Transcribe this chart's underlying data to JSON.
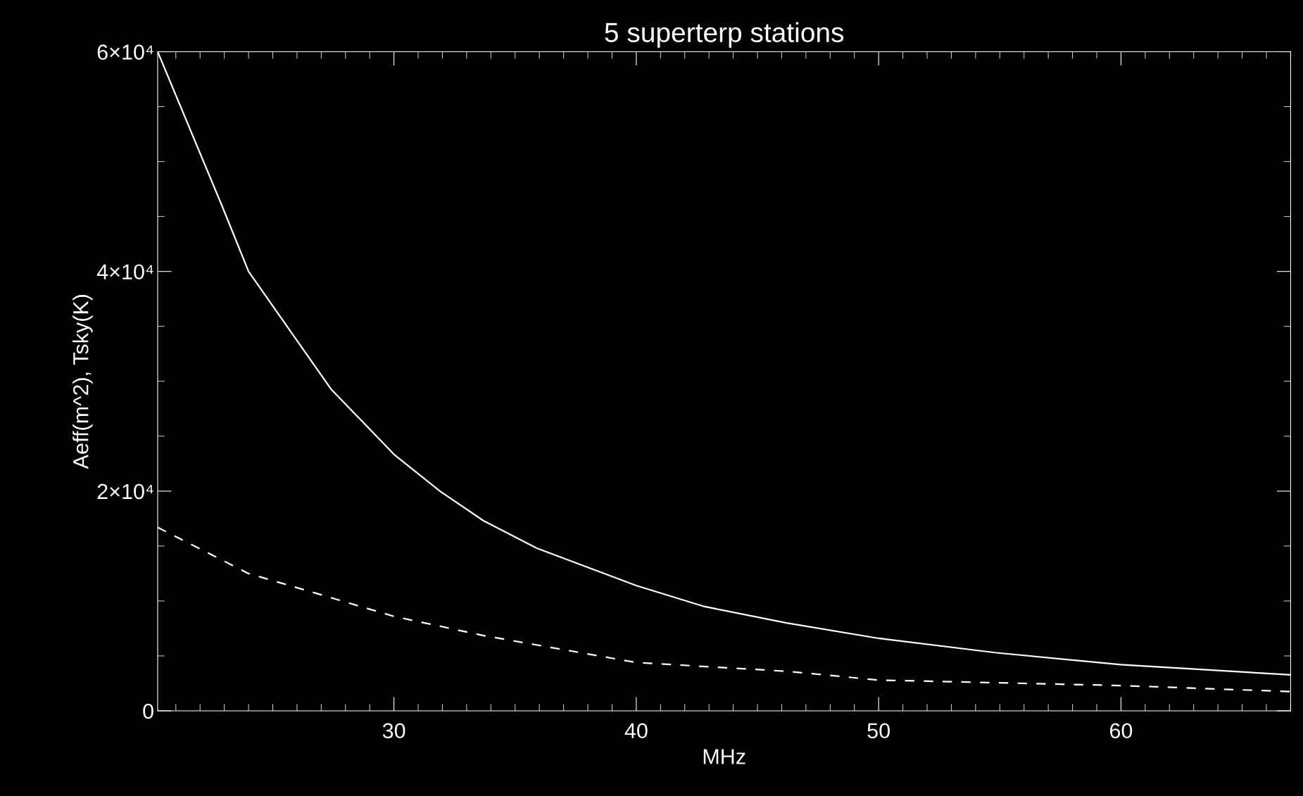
{
  "chart_data": {
    "type": "line",
    "title": "5 superterp stations",
    "xlabel": "MHz",
    "ylabel": "Aeff(m^2), Tsky(K)",
    "xlim": [
      20.25,
      67
    ],
    "xticks": [
      30,
      40,
      50,
      60
    ],
    "ylim": [
      0,
      60000
    ],
    "yticks": [
      {
        "value": 0,
        "label": "0"
      },
      {
        "value": 20000,
        "label": "2×10⁴"
      },
      {
        "value": 40000,
        "label": "4×10⁴"
      },
      {
        "value": 60000,
        "label": "6×10⁴"
      }
    ],
    "grid": false,
    "legend": false,
    "marker": "none",
    "series": [
      {
        "color": "#ffffff",
        "line_style": "solid",
        "x": [
          20.25,
          22.9,
          24,
          27.4,
          30,
          31.9,
          33.7,
          35.9,
          40,
          42.8,
          46.2,
          50,
          54.8,
          60,
          67
        ],
        "values": [
          60000,
          46000,
          40000,
          29300,
          23350,
          20000,
          17300,
          14800,
          11400,
          9500,
          8000,
          6600,
          5300,
          4200,
          3270
        ]
      },
      {
        "color": "#ffffff",
        "line_style": "dashed",
        "x": [
          20.25,
          24,
          27.4,
          30,
          33.7,
          40,
          46.2,
          50,
          60,
          67
        ],
        "values": [
          16700,
          12500,
          10300,
          8600,
          6850,
          4400,
          3600,
          2800,
          2300,
          1750
        ]
      }
    ]
  }
}
